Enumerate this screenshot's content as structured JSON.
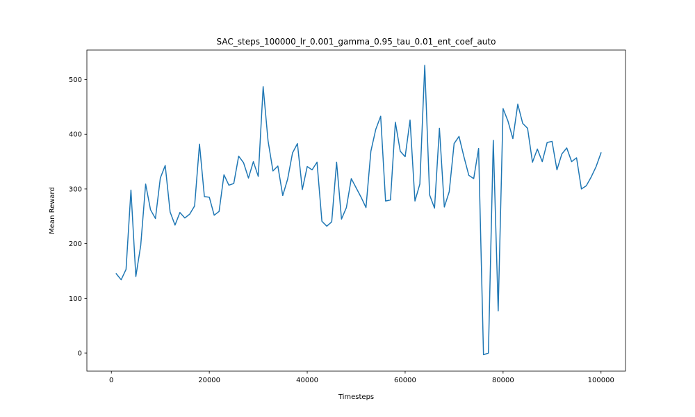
{
  "chart_data": {
    "type": "line",
    "title": "SAC_steps_100000_lr_0.001_gamma_0.95_tau_0.01_ent_coef_auto",
    "xlabel": "Timesteps",
    "ylabel": "Mean Reward",
    "xlim": [
      -5000,
      105000
    ],
    "ylim": [
      -33,
      554
    ],
    "xticks": [
      0,
      20000,
      40000,
      60000,
      80000,
      100000
    ],
    "xtick_labels": [
      "0",
      "20000",
      "40000",
      "60000",
      "80000",
      "100000"
    ],
    "yticks": [
      0,
      100,
      200,
      300,
      400,
      500
    ],
    "ytick_labels": [
      "0",
      "100",
      "200",
      "300",
      "400",
      "500"
    ],
    "grid": false,
    "legend": "none",
    "line_color": "#1f77b4",
    "series": [
      {
        "x": [
          1000,
          2000,
          3000,
          4000,
          5000,
          6000,
          7000,
          8000,
          9000,
          10000,
          11000,
          12000,
          13000,
          14000,
          15000,
          16000,
          17000,
          18000,
          19000,
          20000,
          21000,
          22000,
          23000,
          24000,
          25000,
          26000,
          27000,
          28000,
          29000,
          30000,
          31000,
          32000,
          33000,
          34000,
          35000,
          36000,
          37000,
          38000,
          39000,
          40000,
          41000,
          42000,
          43000,
          44000,
          45000,
          46000,
          47000,
          48000,
          49000,
          50000,
          51000,
          52000,
          53000,
          54000,
          55000,
          56000,
          57000,
          58000,
          59000,
          60000,
          61000,
          62000,
          63000,
          64000,
          65000,
          66000,
          67000,
          68000,
          69000,
          70000,
          71000,
          72000,
          73000,
          74000,
          75000,
          76000,
          77000,
          78000,
          79000,
          80000,
          81000,
          82000,
          83000,
          84000,
          85000,
          86000,
          87000,
          88000,
          89000,
          90000,
          91000,
          92000,
          93000,
          94000,
          95000,
          96000,
          97000,
          98000,
          99000,
          100000
        ],
        "values": [
          145,
          134,
          153,
          298,
          140,
          197,
          309,
          262,
          246,
          320,
          343,
          258,
          234,
          257,
          247,
          254,
          269,
          382,
          286,
          285,
          252,
          259,
          326,
          307,
          310,
          360,
          348,
          320,
          350,
          323,
          487,
          388,
          333,
          342,
          288,
          318,
          366,
          383,
          299,
          341,
          335,
          349,
          241,
          232,
          240,
          349,
          245,
          266,
          319,
          302,
          285,
          266,
          369,
          409,
          433,
          278,
          280,
          422,
          369,
          359,
          426,
          278,
          309,
          526,
          289,
          265,
          411,
          267,
          295,
          383,
          396,
          359,
          325,
          319,
          374,
          -3,
          0,
          389,
          77,
          447,
          424,
          392,
          455,
          420,
          411,
          349,
          373,
          350,
          385,
          387,
          335,
          364,
          375,
          350,
          357,
          300,
          306,
          322,
          341,
          366
        ]
      }
    ]
  }
}
